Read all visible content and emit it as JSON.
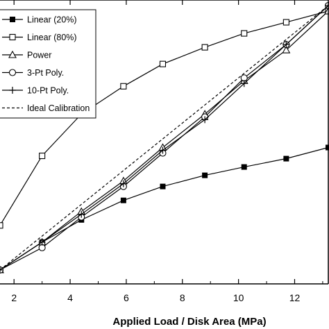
{
  "chart_data": {
    "type": "line",
    "xlabel": "Applied Load / Disk Area (MPa)",
    "ylabel": "",
    "title": "",
    "xlim": [
      1.5,
      13.2
    ],
    "ylim": [
      0,
      1
    ],
    "x_ticks": [
      2,
      4,
      6,
      8,
      10,
      12
    ],
    "y_ticks": [],
    "grid": false,
    "legend_placement": "top-left",
    "series": [
      {
        "name": "Linear (20%)",
        "marker": "filled-square",
        "line": "solid",
        "x": [
          1.5,
          3.0,
          4.4,
          5.9,
          7.3,
          8.8,
          10.2,
          11.7,
          13.2
        ],
        "y": [
          0.05,
          0.15,
          0.23,
          0.3,
          0.35,
          0.39,
          0.42,
          0.45,
          0.49
        ]
      },
      {
        "name": "Linear (80%)",
        "marker": "open-square",
        "line": "solid",
        "x": [
          1.5,
          3.0,
          4.4,
          5.9,
          7.3,
          8.8,
          10.2,
          11.7,
          13.2
        ],
        "y": [
          0.21,
          0.46,
          0.61,
          0.71,
          0.79,
          0.85,
          0.9,
          0.94,
          0.98
        ]
      },
      {
        "name": "Power",
        "marker": "open-triangle",
        "line": "solid",
        "x": [
          1.5,
          3.0,
          4.4,
          5.9,
          7.3,
          8.8,
          10.2,
          11.7,
          13.2
        ],
        "y": [
          0.05,
          0.15,
          0.26,
          0.37,
          0.49,
          0.61,
          0.73,
          0.84,
          0.98
        ]
      },
      {
        "name": "3-Pt Poly.",
        "marker": "open-circle",
        "line": "solid",
        "x": [
          1.5,
          3.0,
          4.4,
          5.9,
          7.3,
          8.8,
          10.2,
          11.7,
          13.2
        ],
        "y": [
          0.05,
          0.13,
          0.24,
          0.35,
          0.47,
          0.6,
          0.74,
          0.86,
          1.0
        ]
      },
      {
        "name": "10-Pt Poly.",
        "marker": "plus",
        "line": "solid",
        "x": [
          1.5,
          3.0,
          4.4,
          5.9,
          7.3,
          8.8,
          10.2,
          11.7,
          13.2
        ],
        "y": [
          0.05,
          0.15,
          0.25,
          0.36,
          0.48,
          0.59,
          0.72,
          0.86,
          1.0
        ]
      },
      {
        "name": "Ideal Calibration",
        "marker": "none",
        "line": "dashed",
        "x": [
          1.5,
          13.2
        ],
        "y": [
          0.05,
          1.0
        ]
      }
    ]
  }
}
